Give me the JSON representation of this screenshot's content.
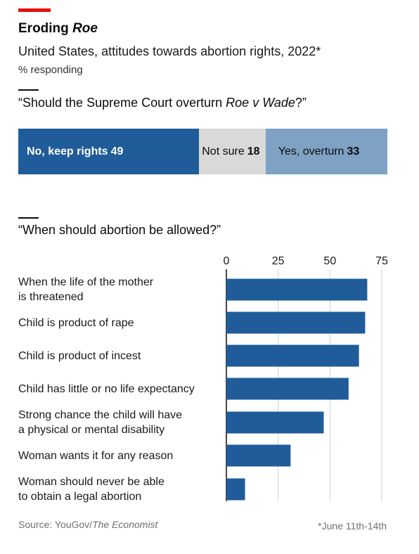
{
  "header": {
    "title_main": "Eroding",
    "title_italic": "Roe",
    "subtitle": "United States, attitudes towards abortion rights, 2022*",
    "unit": "% responding"
  },
  "question1": {
    "prefix": "“Should the Supreme Court overturn",
    "italic": "Roe v Wade",
    "suffix": "?”"
  },
  "question2": {
    "text": "“When should abortion be allowed?”"
  },
  "colors": {
    "accent_red": "#e3120b",
    "dark_blue": "#1f5c99",
    "light_blue": "#7ea1c4",
    "grey": "#d9d9d9"
  },
  "chart_data": [
    {
      "type": "bar",
      "orientation": "horizontal-stacked",
      "categories": [
        "No, keep rights",
        "Not sure",
        "Yes, overturn"
      ],
      "values": [
        49,
        18,
        33
      ],
      "labels": [
        "No, keep rights 49",
        "Not sure 18",
        "Yes, overturn 33"
      ],
      "colors": [
        "#1f5c99",
        "#d9d9d9",
        "#7ea1c4"
      ]
    },
    {
      "type": "bar",
      "orientation": "horizontal",
      "categories": [
        "When the life of the mother is threatened",
        "Child is product of rape",
        "Child is product of incest",
        "Child has little or no life expectancy",
        "Strong chance the child will have a physical or mental disability",
        "Woman wants it for any reason",
        "Woman should never be able to obtain a legal abortion"
      ],
      "category_lines": [
        [
          "When the life of the mother",
          "is threatened"
        ],
        [
          "Child is product of rape"
        ],
        [
          "Child is product of incest"
        ],
        [
          "Child has little or no life expectancy"
        ],
        [
          "Strong chance the child will have",
          "a physical or mental disability"
        ],
        [
          "Woman wants it for any reason"
        ],
        [
          "Woman should never be able",
          "to obtain a legal abortion"
        ]
      ],
      "values": [
        68,
        67,
        64,
        59,
        47,
        31,
        9
      ],
      "xlim": [
        0,
        75
      ],
      "xticks": [
        0,
        25,
        50,
        75
      ],
      "tick_labels": [
        "0",
        "25",
        "50",
        "75"
      ],
      "grid": true,
      "bar_color": "#1f5c99"
    }
  ],
  "footer": {
    "source_prefix": "Source: YouGov/",
    "source_italic": "The Economist",
    "footnote": "*June 11th-14th"
  }
}
